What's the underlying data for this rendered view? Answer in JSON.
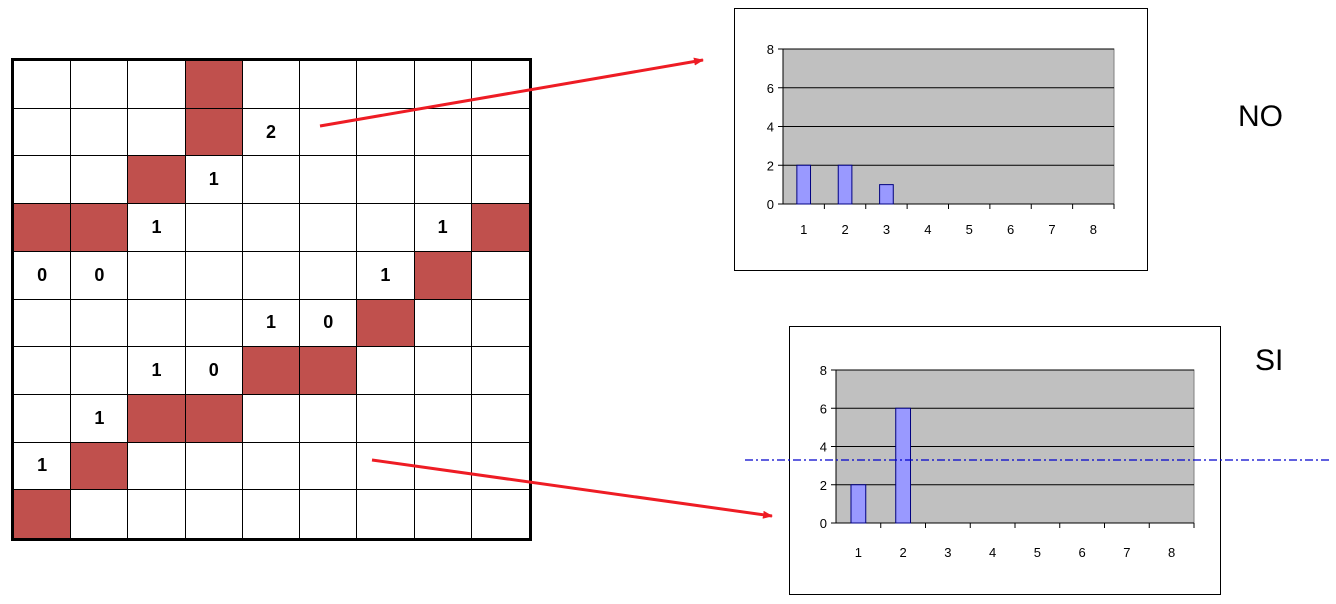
{
  "board": {
    "rows": 10,
    "cols": 9,
    "red_cells": [
      [
        0,
        3
      ],
      [
        1,
        3
      ],
      [
        2,
        2
      ],
      [
        3,
        0
      ],
      [
        3,
        1
      ],
      [
        3,
        8
      ],
      [
        4,
        7
      ],
      [
        5,
        6
      ],
      [
        6,
        4
      ],
      [
        6,
        5
      ],
      [
        7,
        2
      ],
      [
        7,
        3
      ],
      [
        8,
        1
      ],
      [
        9,
        0
      ]
    ],
    "numbers": [
      {
        "r": 1,
        "c": 4,
        "v": "2"
      },
      {
        "r": 2,
        "c": 3,
        "v": "1"
      },
      {
        "r": 3,
        "c": 2,
        "v": "1"
      },
      {
        "r": 3,
        "c": 7,
        "v": "1"
      },
      {
        "r": 4,
        "c": 0,
        "v": "0"
      },
      {
        "r": 4,
        "c": 1,
        "v": "0"
      },
      {
        "r": 4,
        "c": 6,
        "v": "1"
      },
      {
        "r": 5,
        "c": 4,
        "v": "1"
      },
      {
        "r": 5,
        "c": 5,
        "v": "0"
      },
      {
        "r": 6,
        "c": 2,
        "v": "1"
      },
      {
        "r": 6,
        "c": 3,
        "v": "0"
      },
      {
        "r": 7,
        "c": 1,
        "v": "1"
      },
      {
        "r": 8,
        "c": 0,
        "v": "1"
      }
    ],
    "colors": {
      "filled": "#c0504d",
      "grid": "#000000"
    }
  },
  "labels": {
    "no": "NO",
    "si": "SI"
  },
  "colors": {
    "arrow": "#ee1c24",
    "bar": "#9999ff",
    "bar_border": "#000080",
    "plot_bg": "#c0c0c0",
    "threshold": "#0000cc"
  },
  "chart_data": [
    {
      "type": "bar",
      "categories": [
        "1",
        "2",
        "3",
        "4",
        "5",
        "6",
        "7",
        "8"
      ],
      "values": [
        2,
        2,
        1,
        0,
        0,
        0,
        0,
        0
      ],
      "ylim": [
        0,
        8
      ],
      "yticks": [
        "0",
        "2",
        "4",
        "6",
        "8"
      ],
      "grid": true,
      "title": "",
      "xlabel": "",
      "ylabel": ""
    },
    {
      "type": "bar",
      "categories": [
        "1",
        "2",
        "3",
        "4",
        "5",
        "6",
        "7",
        "8"
      ],
      "values": [
        2,
        6,
        0,
        0,
        0,
        0,
        0,
        0
      ],
      "ylim": [
        0,
        8
      ],
      "yticks": [
        "0",
        "2",
        "4",
        "6",
        "8"
      ],
      "grid": true,
      "title": "",
      "xlabel": "",
      "ylabel": ""
    }
  ]
}
